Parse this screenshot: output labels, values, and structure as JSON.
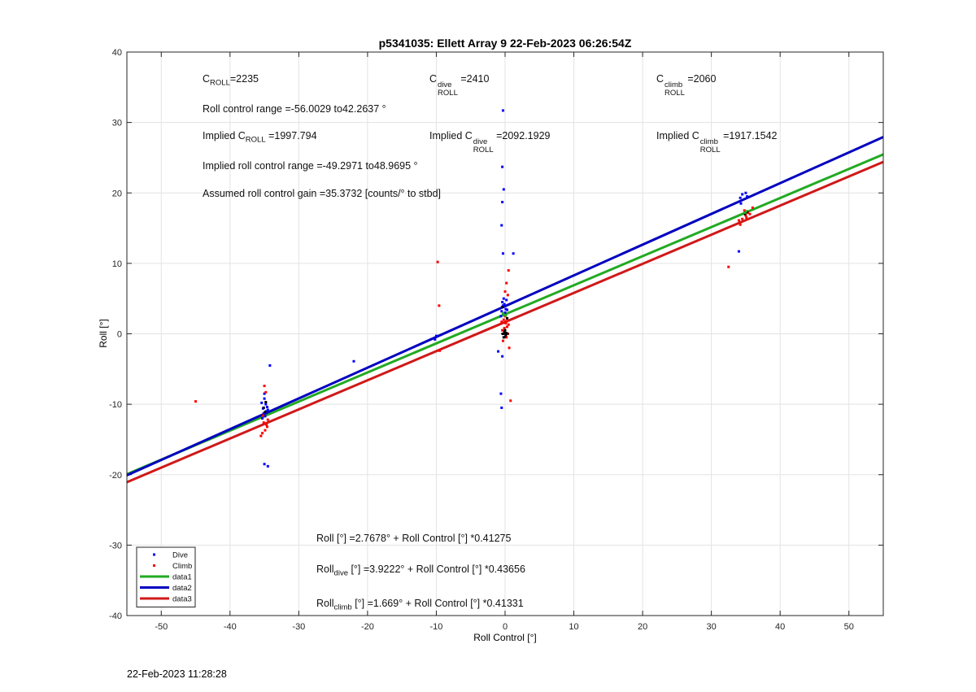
{
  "chart_data": {
    "type": "scatter",
    "title": "p5341035: Ellett Array 9 22-Feb-2023 06:26:54Z",
    "xlabel": "Roll Control [°]",
    "ylabel": "Roll [°]",
    "xlim": [
      -55,
      55
    ],
    "ylim": [
      -40,
      40
    ],
    "xticks": [
      -50,
      -40,
      -30,
      -20,
      -10,
      0,
      10,
      20,
      30,
      40,
      50
    ],
    "yticks": [
      -40,
      -30,
      -20,
      -10,
      0,
      10,
      20,
      30,
      40
    ],
    "grid": true,
    "legend_position": "bottom-left",
    "series": [
      {
        "name": "Dive",
        "kind": "points",
        "color": "#0000ff",
        "points": [
          [
            -35,
            -8.5
          ],
          [
            -35,
            -9.2
          ],
          [
            -34.8,
            -10.0
          ],
          [
            -35.2,
            -10.6
          ],
          [
            -34.7,
            -11.0
          ],
          [
            -35.1,
            -11.3
          ],
          [
            -34.6,
            -10.4
          ],
          [
            -35.3,
            -12.0
          ],
          [
            -34.9,
            -11.7
          ],
          [
            -35,
            -18.5
          ],
          [
            -34.5,
            -18.8
          ],
          [
            -34.2,
            -4.5
          ],
          [
            -35.4,
            -9.8
          ],
          [
            -34.5,
            -10.8
          ],
          [
            -22,
            -3.9
          ],
          [
            -10,
            -0.3
          ],
          [
            -10.2,
            -0.8
          ],
          [
            -0.3,
            31.7
          ],
          [
            -0.4,
            23.7
          ],
          [
            -0.2,
            20.5
          ],
          [
            -0.4,
            18.7
          ],
          [
            -0.5,
            15.4
          ],
          [
            -0.3,
            11.4
          ],
          [
            1.2,
            11.4
          ],
          [
            -0.6,
            -8.5
          ],
          [
            -0.5,
            -10.5
          ],
          [
            -0.4,
            -3.2
          ],
          [
            -1.0,
            -2.5
          ],
          [
            -0.2,
            5.0
          ],
          [
            -0.4,
            4.5
          ],
          [
            -0.1,
            4.2
          ],
          [
            -0.3,
            3.8
          ],
          [
            0.1,
            3.5
          ],
          [
            -0.5,
            3.2
          ],
          [
            -0.2,
            2.8
          ],
          [
            0.2,
            4.8
          ],
          [
            -0.6,
            2.5
          ],
          [
            0.0,
            3.0
          ],
          [
            -0.3,
            4.0
          ],
          [
            0.3,
            3.4
          ],
          [
            34.2,
            19.3
          ],
          [
            34.5,
            19.8
          ],
          [
            35,
            20.0
          ],
          [
            34,
            11.7
          ],
          [
            34.3,
            18.5
          ],
          [
            35.2,
            19.5
          ]
        ]
      },
      {
        "name": "Climb",
        "kind": "points",
        "color": "#ff0000",
        "points": [
          [
            -45,
            -9.6
          ],
          [
            -35,
            -7.4
          ],
          [
            -34.8,
            -8.3
          ],
          [
            -35.1,
            -12.6
          ],
          [
            -34.6,
            -13.2
          ],
          [
            -35.3,
            -14.1
          ],
          [
            -34.9,
            -13.7
          ],
          [
            -35.5,
            -14.5
          ],
          [
            -34.7,
            -12.9
          ],
          [
            -35.2,
            -11.6
          ],
          [
            -34.5,
            -12.2
          ],
          [
            -9.8,
            10.2
          ],
          [
            -9.6,
            4.0
          ],
          [
            -9.5,
            -2.4
          ],
          [
            0.5,
            9.0
          ],
          [
            0.8,
            -9.5
          ],
          [
            0.2,
            7.2
          ],
          [
            0.0,
            6.0
          ],
          [
            0.4,
            5.5
          ],
          [
            -0.2,
            2.0
          ],
          [
            0.1,
            1.5
          ],
          [
            0.3,
            1.0
          ],
          [
            -0.4,
            0.5
          ],
          [
            0.2,
            -0.5
          ],
          [
            0.0,
            2.5
          ],
          [
            0.4,
            0.0
          ],
          [
            -0.3,
            -1.0
          ],
          [
            0.6,
            -2.0
          ],
          [
            0.2,
            1.8
          ],
          [
            -0.1,
            0.8
          ],
          [
            0.5,
            1.3
          ],
          [
            -0.5,
            1.7
          ],
          [
            32.5,
            9.5
          ],
          [
            34.2,
            15.5
          ],
          [
            34.5,
            16.3
          ],
          [
            35,
            16.8
          ],
          [
            35.3,
            17.2
          ],
          [
            34.8,
            17.5
          ],
          [
            35.6,
            17.0
          ],
          [
            34,
            16.1
          ],
          [
            36,
            17.9
          ],
          [
            35.1,
            16.5
          ]
        ]
      },
      {
        "name": "",
        "kind": "points",
        "color": "#000000",
        "points": [
          [
            -34.8,
            -9.7
          ],
          [
            -35.1,
            -10.5
          ],
          [
            -34.9,
            -11.1
          ],
          [
            -0.3,
            0.0
          ],
          [
            0.1,
            -0.2
          ],
          [
            -0.1,
            0.3
          ],
          [
            0.2,
            0.1
          ],
          [
            -0.2,
            -0.5
          ],
          [
            0.0,
            0.5
          ],
          [
            -0.4,
            3.8
          ],
          [
            0.3,
            2.2
          ],
          [
            34.9,
            17.0
          ],
          [
            35.2,
            17.3
          ]
        ]
      },
      {
        "name": "",
        "kind": "points",
        "color": "#22aa22",
        "points": [
          [
            -0.2,
            2.7
          ],
          [
            0.1,
            2.6
          ],
          [
            -0.3,
            2.9
          ],
          [
            34.9,
            17.2
          ],
          [
            35.1,
            17.4
          ]
        ]
      },
      {
        "name": "data1",
        "kind": "line",
        "color": "#22aa22",
        "intercept": 2.7678,
        "slope": 0.41275
      },
      {
        "name": "data2",
        "kind": "line",
        "color": "#0000c0",
        "intercept": 3.9222,
        "slope": 0.43656
      },
      {
        "name": "data3",
        "kind": "line",
        "color": "#d01818",
        "intercept": 1.669,
        "slope": 0.41331
      }
    ]
  },
  "annotations": {
    "c_roll": {
      "base": "C",
      "sub": "ROLL",
      "rest": "=2235"
    },
    "c_roll_dive": {
      "base": "C",
      "sup": "dive",
      "sub": "ROLL",
      "rest": " =2410"
    },
    "c_roll_climb": {
      "base": "C",
      "sup": "climb",
      "sub": "ROLL",
      "rest": " =2060"
    },
    "roll_range": "Roll control range =-56.0029 to42.2637 °",
    "implied_c_roll": {
      "pre": "Implied C",
      "sub": "ROLL",
      "rest": " =1997.794"
    },
    "implied_c_roll_dive": {
      "pre": "Implied C",
      "sup": "dive",
      "sub": "ROLL",
      "rest": " =2092.1929"
    },
    "implied_c_roll_climb": {
      "pre": "Implied C",
      "sup": "climb",
      "sub": "ROLL",
      "rest": " =1917.1542"
    },
    "implied_range": "Implied roll control range =-49.2971 to48.9695 °",
    "assumed_gain": "Assumed roll control gain =35.3732 [counts/° to stbd]",
    "fit_all": "Roll [°] =2.7678° + Roll Control [°] *0.41275",
    "fit_dive": {
      "pre": "Roll",
      "sub": "dive",
      "rest": " [°] =3.9222° + Roll Control [°] *0.43656"
    },
    "fit_climb": {
      "pre": "Roll",
      "sub": "climb",
      "rest": " [°] =1.669° + Roll Control [°] *0.41331"
    }
  },
  "footer": {
    "timestamp": "22-Feb-2023 11:28:28"
  }
}
